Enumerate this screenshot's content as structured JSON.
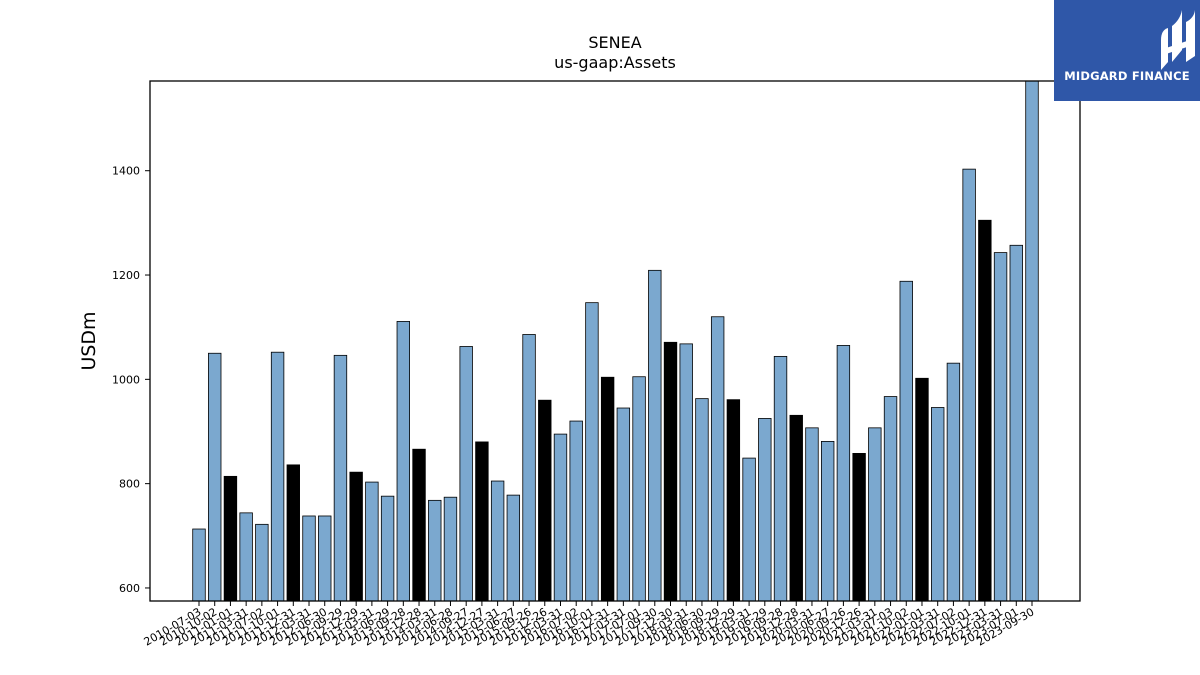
{
  "brand": {
    "name": "MIDGARD FINANCE",
    "bg_color": "#2f57a8"
  },
  "chart_data": {
    "type": "bar",
    "title": "SENEA",
    "subtitle": "us-gaap:Assets",
    "xlabel": "",
    "ylabel": "USDm",
    "ylim": [
      575,
      1572
    ],
    "yticks": [
      600,
      800,
      1000,
      1200,
      1400
    ],
    "grid": false,
    "colors": {
      "quarterly": "#7ba8cf",
      "fiscal_year_end": "#000000",
      "edge": "#000000"
    },
    "categories": [
      "2010-07-03",
      "2010-10-02",
      "2011-01-01",
      "2011-03-31",
      "2011-07-02",
      "2011-10-01",
      "2011-12-31",
      "2012-03-31",
      "2012-06-30",
      "2012-09-29",
      "2012-12-29",
      "2013-03-31",
      "2013-06-29",
      "2013-09-28",
      "2013-12-28",
      "2014-03-31",
      "2014-06-28",
      "2014-09-27",
      "2014-12-27",
      "2015-03-31",
      "2015-06-27",
      "2015-09-26",
      "2015-12-26",
      "2016-03-31",
      "2016-07-02",
      "2016-10-01",
      "2016-12-31",
      "2017-03-31",
      "2017-07-01",
      "2017-09-30",
      "2017-12-30",
      "2018-03-31",
      "2018-06-30",
      "2018-09-29",
      "2018-12-29",
      "2019-03-31",
      "2019-06-29",
      "2019-09-28",
      "2019-12-28",
      "2020-03-31",
      "2020-06-27",
      "2020-09-26",
      "2020-12-26",
      "2021-03-31",
      "2021-07-03",
      "2021-10-02",
      "2022-01-01",
      "2022-03-31",
      "2022-07-02",
      "2022-10-01",
      "2022-12-31",
      "2023-03-31",
      "2023-07-01",
      "2023-09-30"
    ],
    "values": [
      713,
      1050,
      814,
      744,
      722,
      1052,
      836,
      738,
      738,
      1046,
      822,
      803,
      776,
      1111,
      866,
      768,
      774,
      1063,
      880,
      805,
      778,
      1086,
      960,
      895,
      920,
      1147,
      1004,
      945,
      1005,
      1209,
      1071,
      1068,
      963,
      1120,
      961,
      849,
      925,
      1044,
      931,
      907,
      881,
      1065,
      858,
      907,
      967,
      1188,
      1002,
      946,
      1031,
      1403,
      1305,
      1243,
      1257,
      1572
    ],
    "fiscal_year_end_flags": [
      0,
      0,
      1,
      0,
      0,
      0,
      1,
      0,
      0,
      0,
      1,
      0,
      0,
      0,
      1,
      0,
      0,
      0,
      1,
      0,
      0,
      0,
      1,
      0,
      0,
      0,
      1,
      0,
      0,
      0,
      1,
      0,
      0,
      0,
      1,
      0,
      0,
      0,
      1,
      0,
      0,
      0,
      1,
      0,
      0,
      0,
      1,
      0,
      0,
      0,
      1,
      0,
      0,
      0
    ]
  }
}
